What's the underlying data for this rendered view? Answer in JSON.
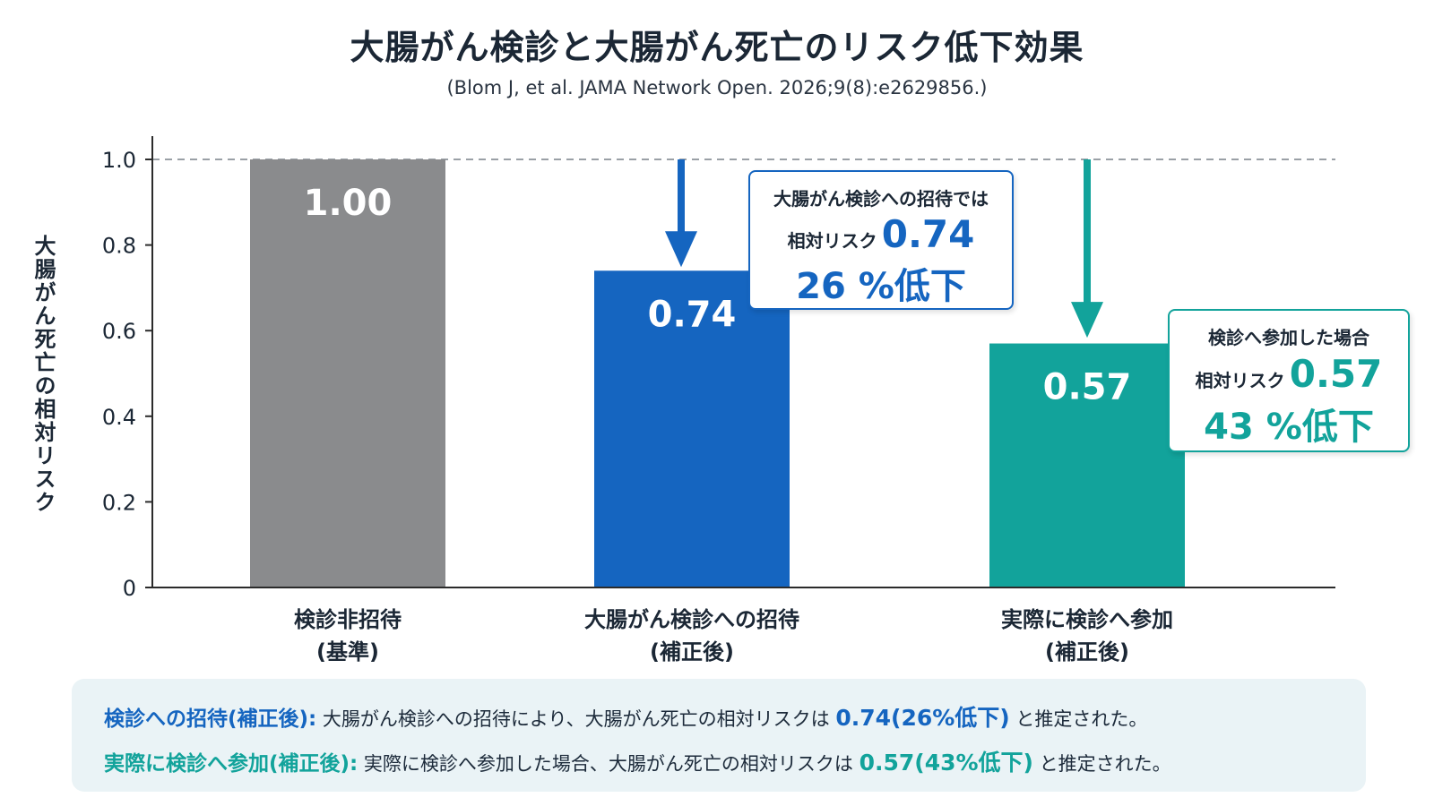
{
  "title": "大腸がん検診と大腸がん死亡のリスク低下効果",
  "subtitle": "(Blom J, et al. JAMA Network Open. 2026;9(8):e2629856.)",
  "colors": {
    "gray": "#8a8b8d",
    "blue": "#1565c0",
    "teal": "#12a39b",
    "axis": "#2b2b2b"
  },
  "chart_data": {
    "type": "bar",
    "ylabel": "大腸がん死亡の相対リスク",
    "ylim": [
      0,
      1.0
    ],
    "yticks": [
      "0",
      "0.2",
      "0.4",
      "0.6",
      "0.8",
      "1.0"
    ],
    "categories": [
      {
        "line1": "検診非招待",
        "line2": "(基準)"
      },
      {
        "line1": "大腸がん検診への招待",
        "line2": "(補正後)"
      },
      {
        "line1": "実際に検診へ参加",
        "line2": "(補正後)"
      }
    ],
    "values": [
      1.0,
      0.74,
      0.57
    ],
    "value_labels": [
      "1.00",
      "0.74",
      "0.57"
    ],
    "bar_colors": [
      "#8a8b8d",
      "#1565c0",
      "#12a39b"
    ],
    "reference_line": 1.0
  },
  "callouts": {
    "invite": {
      "line1": "大腸がん検診への招待では",
      "prefix": "相対リスク",
      "value": "0.74",
      "reduction": "26 %低下"
    },
    "participation": {
      "line1": "検診へ参加した場合",
      "prefix": "相対リスク",
      "value": "0.57",
      "reduction": "43 %低下"
    }
  },
  "summary": {
    "row1": {
      "key": "検診への招待(補正後):",
      "text": "大腸がん検診への招待により、大腸がん死亡の相対リスクは",
      "value": "0.74(26%低下)",
      "tail": "と推定された。"
    },
    "row2": {
      "key": "実際に検診へ参加(補正後):",
      "text": "実際に検診へ参加した場合、大腸がん死亡の相対リスクは",
      "value": "0.57(43%低下)",
      "tail": "と推定された。"
    }
  }
}
